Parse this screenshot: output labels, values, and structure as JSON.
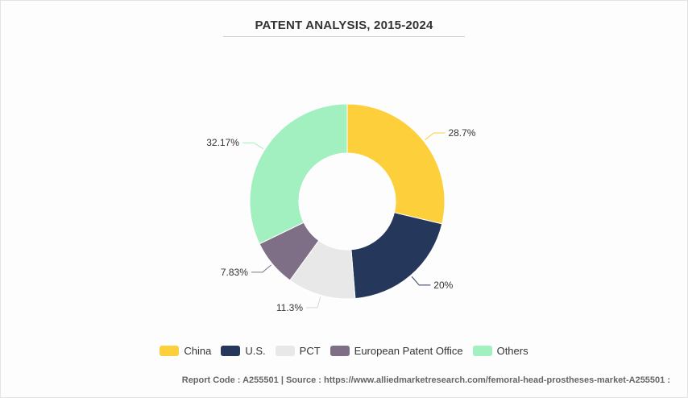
{
  "chart_data": {
    "type": "pie",
    "title": "PATENT ANALYSIS, 2015-2024",
    "categories": [
      "China",
      "U.S.",
      "PCT",
      "European Patent Office",
      "Others"
    ],
    "values": [
      28.7,
      20,
      11.3,
      7.83,
      32.17
    ],
    "value_labels": [
      "28.7%",
      "20%",
      "11.3%",
      "7.83%",
      "32.17%"
    ],
    "colors": [
      "#fdd03b",
      "#25375a",
      "#e8e8e8",
      "#7f6f86",
      "#a2efbf"
    ],
    "legend_position": "bottom",
    "donut": true
  },
  "footer": {
    "text": "Report Code : A255501  |  Source : https://www.alliedmarketresearch.com/femoral-head-prostheses-market-A255501 :"
  }
}
